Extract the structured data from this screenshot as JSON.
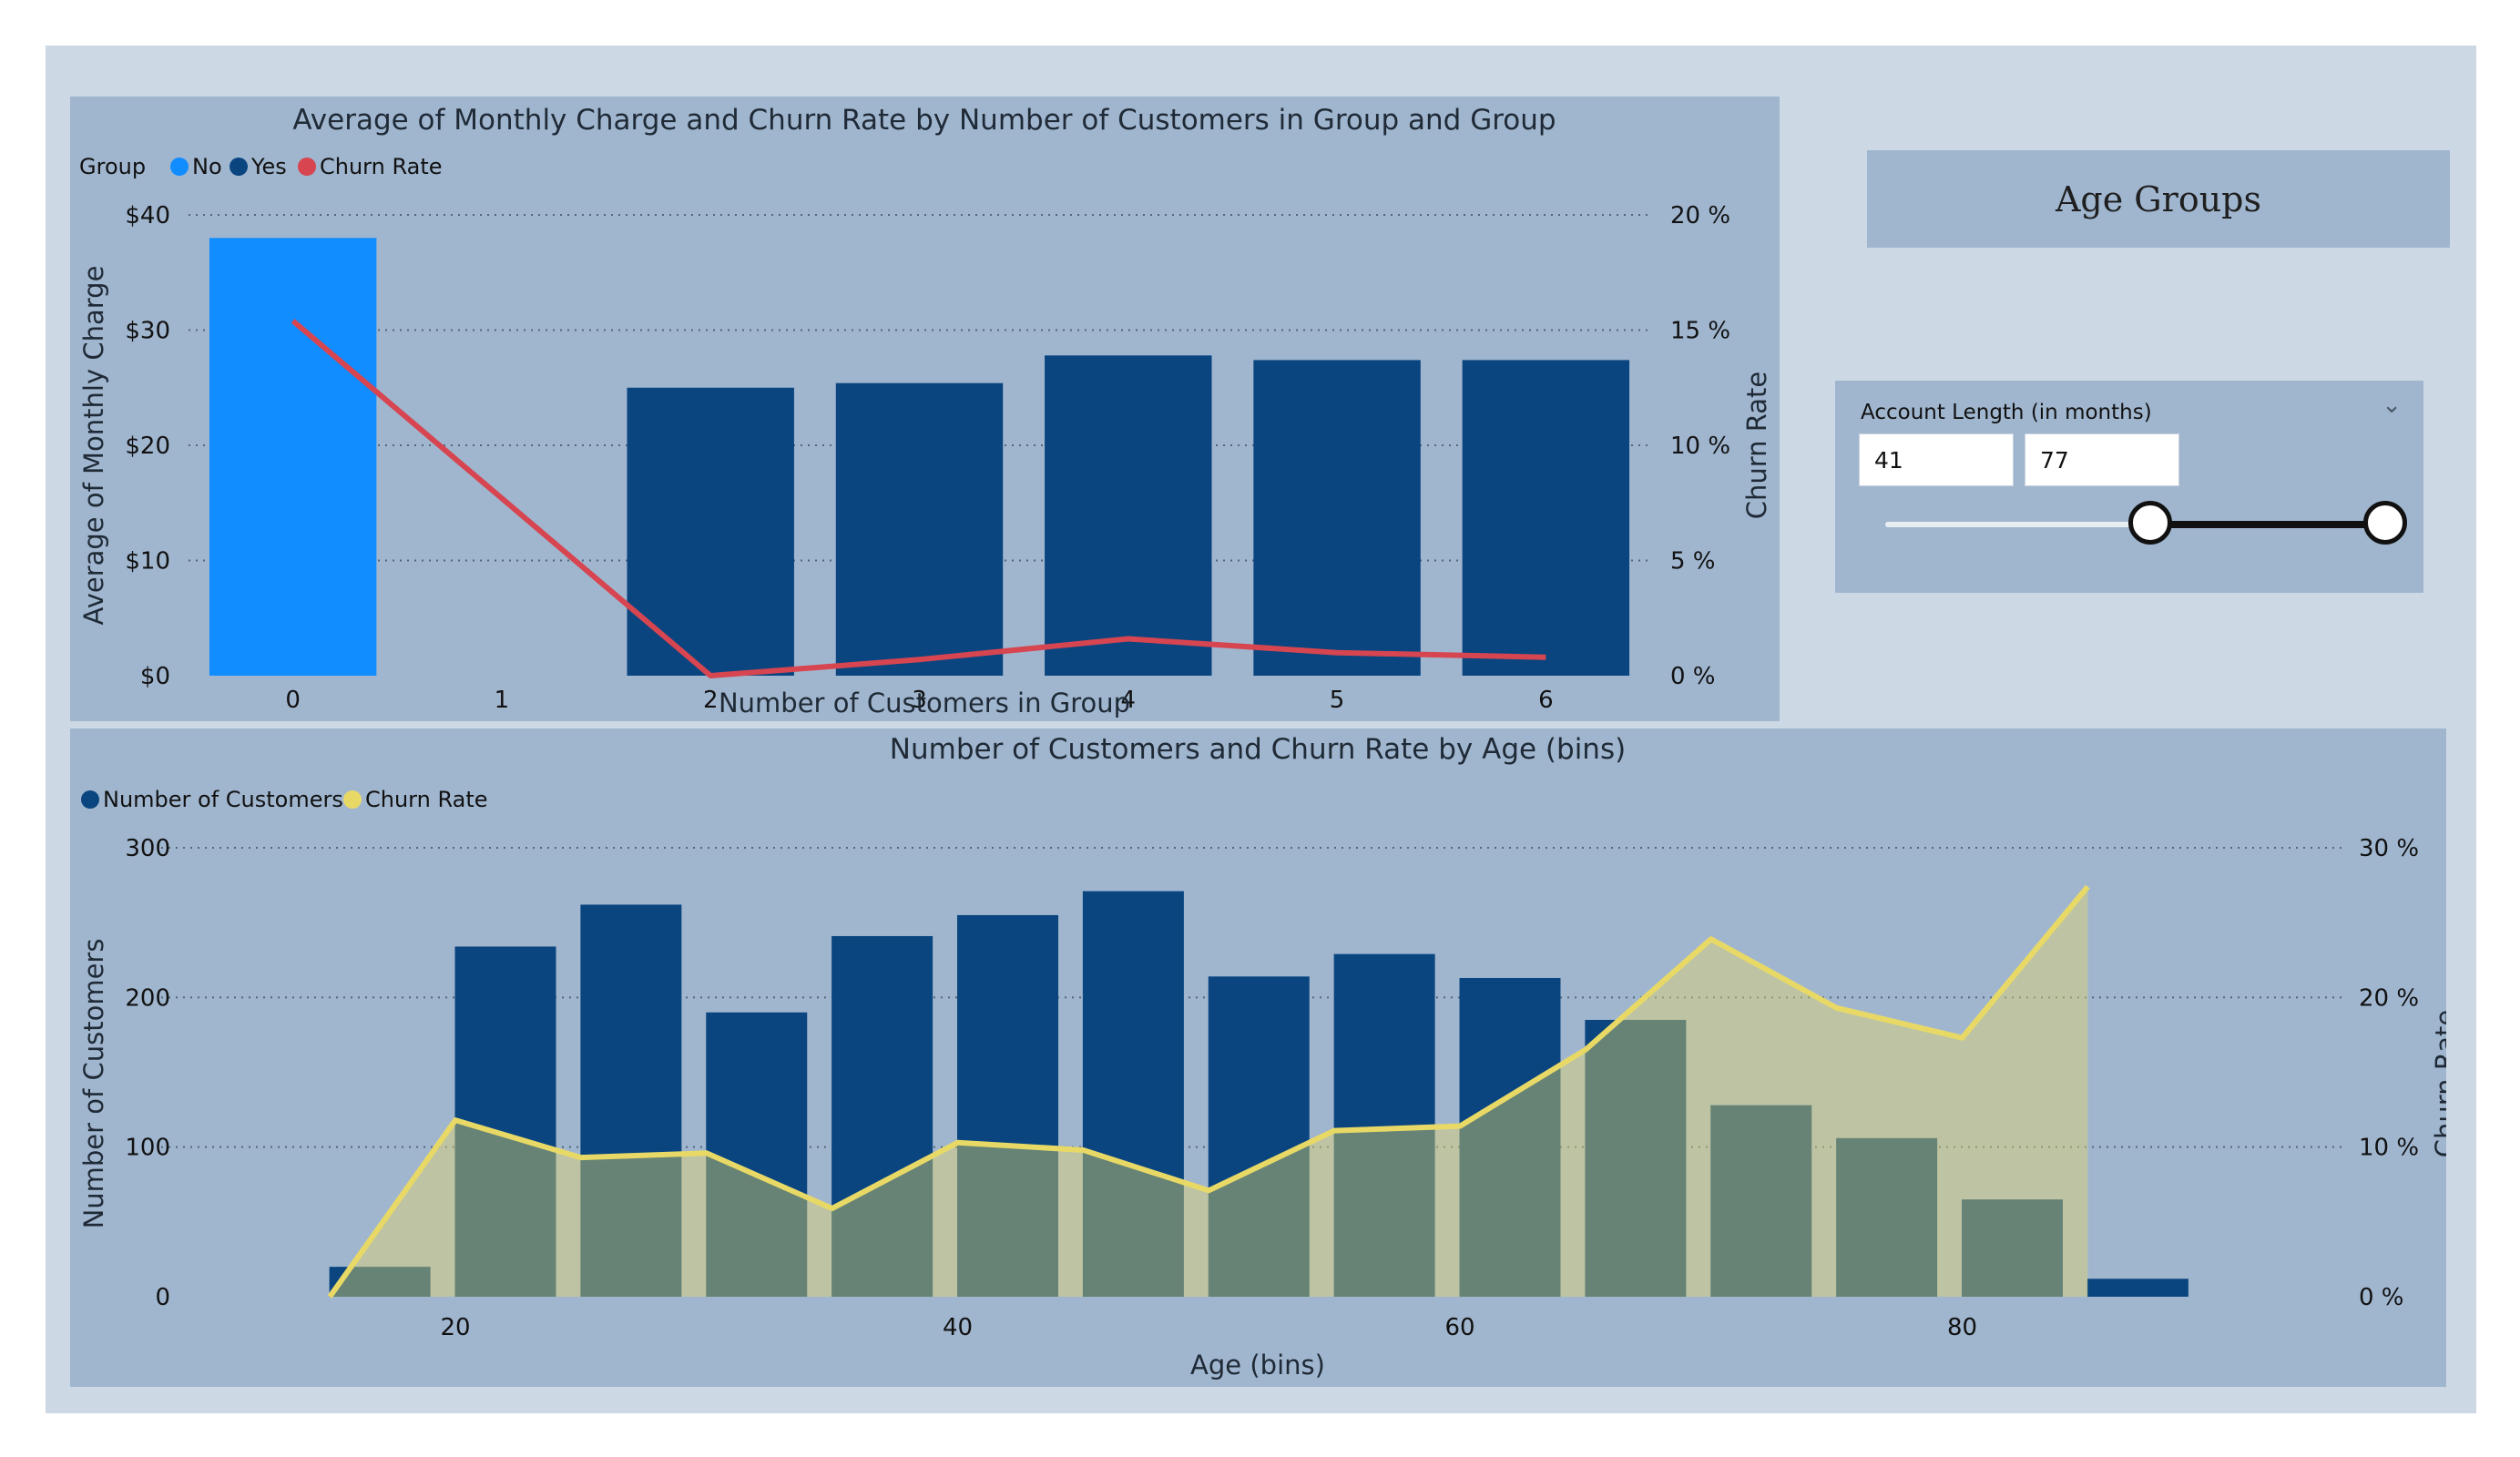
{
  "colors": {
    "no": "#118dff",
    "yes": "#0a4580",
    "churn_red": "#d64550",
    "churn_yellow": "#e8d966",
    "panel": "#a0b6cf",
    "page": "#ccd8e4"
  },
  "age_groups_title": "Age Groups",
  "slicer": {
    "title": "Account Length (in months)",
    "min_value": "41",
    "max_value": "77",
    "chevron_icon": "chevron-down-icon",
    "range_min": 1,
    "range_max": 100
  },
  "chart_data": [
    {
      "type": "bar",
      "title": "Average of Monthly Charge and Churn Rate by Number of Customers in Group and Group",
      "legend_title": "Group",
      "legend_position": "top-left",
      "xlabel": "Number of Customers in Group",
      "ylabel": "Average of Monthly Charge",
      "y2label": "Churn Rate",
      "categories": [
        "0",
        "1",
        "2",
        "3",
        "4",
        "5",
        "6"
      ],
      "ylim": [
        0,
        40
      ],
      "y_ticks": [
        "$0",
        "$10",
        "$20",
        "$30",
        "$40"
      ],
      "y2lim": [
        0,
        20
      ],
      "y2_ticks": [
        "0 %",
        "5 %",
        "10 %",
        "15 %",
        "20 %"
      ],
      "grid": true,
      "series": [
        {
          "name": "No",
          "kind": "bar",
          "values": [
            38,
            null,
            null,
            null,
            null,
            null,
            null
          ]
        },
        {
          "name": "Yes",
          "kind": "bar",
          "values": [
            null,
            null,
            25,
            25.4,
            27.8,
            27.4,
            27.4
          ]
        },
        {
          "name": "Churn Rate",
          "kind": "line",
          "axis": "secondary",
          "values": [
            15.4,
            null,
            0,
            0.7,
            1.6,
            1.0,
            0.8
          ]
        }
      ]
    },
    {
      "type": "bar",
      "title": "Number of Customers and Churn Rate by Age (bins)",
      "legend_position": "top-left",
      "xlabel": "Age (bins)",
      "ylabel": "Number of Customers",
      "y2label": "Churn Rate",
      "xlim": [
        10,
        90
      ],
      "x_ticks": [
        "20",
        "40",
        "60",
        "80"
      ],
      "ylim": [
        0,
        300
      ],
      "y_ticks": [
        "0",
        "100",
        "200",
        "300"
      ],
      "y2lim": [
        0,
        30
      ],
      "y2_ticks": [
        "0 %",
        "10 %",
        "20 %",
        "30 %"
      ],
      "grid": true,
      "x": [
        15,
        20,
        25,
        30,
        35,
        40,
        45,
        50,
        55,
        60,
        65,
        70,
        75,
        80,
        85
      ],
      "series": [
        {
          "name": "Number of Customers",
          "kind": "bar",
          "values": [
            20,
            234,
            262,
            190,
            241,
            255,
            271,
            214,
            229,
            213,
            185,
            128,
            106,
            65,
            12
          ]
        },
        {
          "name": "Churn Rate",
          "kind": "area",
          "axis": "secondary",
          "values": [
            0,
            11.8,
            9.3,
            9.6,
            5.9,
            10.3,
            9.8,
            7.1,
            11.1,
            11.4,
            16.5,
            23.9,
            19.3,
            17.3,
            27.4
          ]
        }
      ]
    }
  ]
}
